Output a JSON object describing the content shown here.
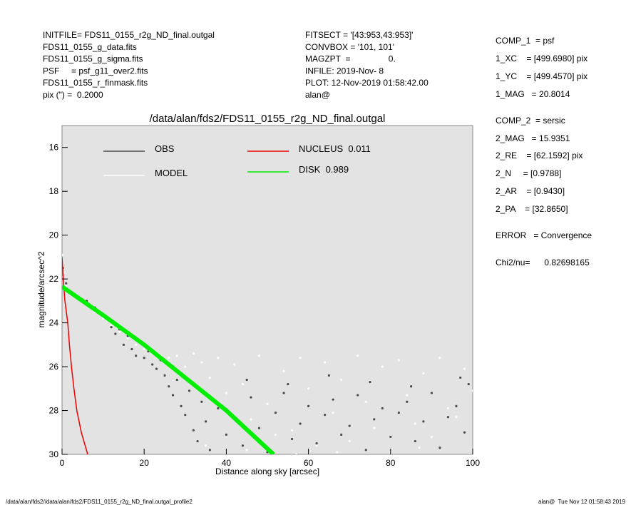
{
  "header": {
    "left": [
      "INITFILE= FDS11_0155_r2g_ND_final.outgal",
      "FDS11_0155_g_data.fits",
      "FDS11_0155_g_sigma.fits",
      "PSF     = psf_g11_over2.fits",
      "FDS11_0155_r_finmask.fits",
      "pix (\") =  0.2000"
    ],
    "middle": [
      "FITSECT = '[43:953,43:953]'",
      "CONVBOX = '101, 101'",
      "MAGZPT  =                0.",
      "INFILE: 2019-Nov- 8",
      "PLOT: 12-Nov-2019 01:58:42.00",
      "alan@"
    ],
    "right": [
      "COMP_1  = psf",
      "1_XC    = [499.6980] pix",
      "1_YC    = [499.4570] pix",
      "1_MAG   = 20.8014",
      "COMP_2  = sersic",
      "2_MAG   = 15.9351",
      "2_RE    = [62.1592] pix",
      "2_N     = [0.9788]",
      "2_AR    = [0.9430]",
      "2_PA    = [32.8650]",
      "ERROR   = Convergence",
      "Chi2/nu=      0.82698165"
    ]
  },
  "footer": {
    "left": "/data/alan/fds2//data/alan/fds2/FDS11_0155_r2g_ND_final.outgal_profile2",
    "right": "alan@  Tue Nov 12 01:58:43 2019"
  },
  "chart_data": {
    "type": "scatter",
    "title": "/data/alan/fds2/FDS11_0155_r2g_ND_final.outgal",
    "x_label": "Distance along sky [arcsec]",
    "y_label": "magnitude/arcsec^2",
    "xlim": [
      0,
      100
    ],
    "xticks": [
      0,
      20,
      40,
      60,
      80,
      100
    ],
    "ylim": [
      15,
      30
    ],
    "yticks": [
      16,
      18,
      20,
      22,
      24,
      26,
      28,
      30
    ],
    "y_inverted": true,
    "series": [
      {
        "name": "MODEL",
        "color": "#ffffff",
        "kind": "points",
        "x": [
          0,
          0.5,
          1,
          2,
          4,
          6,
          8,
          10,
          12,
          14,
          16,
          18,
          20,
          22,
          24,
          26,
          28,
          30,
          32,
          34,
          36,
          38,
          40,
          42,
          44,
          46,
          48,
          50,
          52,
          54,
          56,
          58,
          60,
          62,
          64,
          66,
          68,
          70,
          72,
          74,
          76,
          78,
          80,
          82,
          84,
          86,
          88,
          90,
          92,
          94,
          96,
          98,
          100,
          35,
          45,
          57,
          67,
          87
        ],
        "y": [
          20.9,
          21.7,
          22.3,
          22.6,
          22.9,
          23.2,
          23.5,
          23.8,
          24.1,
          24.4,
          24.7,
          25.0,
          25.2,
          25.4,
          25.5,
          25.6,
          25.5,
          26.0,
          25.4,
          25.8,
          26.5,
          25.6,
          27.2,
          25.9,
          26.8,
          28.4,
          25.5,
          27.7,
          29.1,
          26.2,
          28.9,
          25.6,
          27.0,
          29.6,
          25.8,
          28.1,
          26.6,
          29.4,
          25.5,
          27.6,
          28.8,
          26.0,
          29.9,
          25.7,
          27.3,
          28.6,
          26.3,
          29.2,
          25.6,
          27.9,
          28.3,
          26.1,
          27.1,
          29.6,
          29.8,
          30.0,
          29.9,
          29.7
        ]
      },
      {
        "name": "OBS",
        "color": "#4a4a4a",
        "kind": "points",
        "x": [
          10,
          11,
          12,
          13,
          14,
          15,
          16,
          17,
          18,
          19,
          20,
          21,
          22,
          23,
          24,
          25,
          26,
          27,
          28,
          29,
          30,
          31,
          32,
          33,
          34,
          35,
          36,
          38,
          40,
          42,
          44,
          46,
          48,
          50,
          52,
          54,
          56,
          58,
          60,
          62,
          64,
          66,
          68,
          70,
          72,
          74,
          76,
          78,
          80,
          82,
          84,
          86,
          88,
          90,
          92,
          94,
          96,
          98,
          99,
          97,
          85,
          75,
          65,
          55,
          45,
          8,
          6,
          3,
          1,
          0.2
        ],
        "y": [
          23.6,
          23.8,
          24.2,
          24.5,
          24.3,
          25.0,
          24.6,
          25.2,
          25.5,
          24.9,
          25.6,
          25.3,
          25.9,
          26.1,
          25.7,
          26.4,
          26.9,
          27.3,
          26.6,
          27.8,
          28.2,
          27.1,
          28.9,
          29.4,
          27.6,
          28.5,
          29.8,
          27.9,
          29.1,
          28.3,
          29.6,
          27.4,
          28.8,
          29.9,
          28.1,
          27.2,
          29.3,
          28.6,
          27.8,
          29.5,
          28.2,
          27.5,
          29.1,
          28.7,
          27.3,
          29.8,
          28.4,
          27.9,
          29.2,
          28.1,
          27.6,
          29.4,
          28.5,
          27.2,
          29.7,
          28.3,
          27.8,
          29.0,
          26.8,
          26.5,
          26.9,
          26.7,
          26.4,
          26.8,
          26.6,
          23.3,
          23.0,
          22.7,
          22.2,
          21.5
        ]
      },
      {
        "name": "NUCLEUS  0.011",
        "color": "#ee0000",
        "kind": "line",
        "x": [
          0,
          0.3,
          0.7,
          1.4,
          1.8,
          2.3,
          2.9,
          3.6,
          4.7,
          6.25
        ],
        "y": [
          21,
          22,
          23,
          24,
          25,
          26,
          27,
          28,
          29,
          30
        ]
      },
      {
        "name": "DISK  0.989",
        "color": "#00ee00",
        "kind": "line",
        "x": [
          0,
          5,
          10,
          20,
          30,
          40,
          51.5
        ],
        "y": [
          22.35,
          23.0,
          23.65,
          25.0,
          26.5,
          28.0,
          30
        ]
      }
    ]
  }
}
